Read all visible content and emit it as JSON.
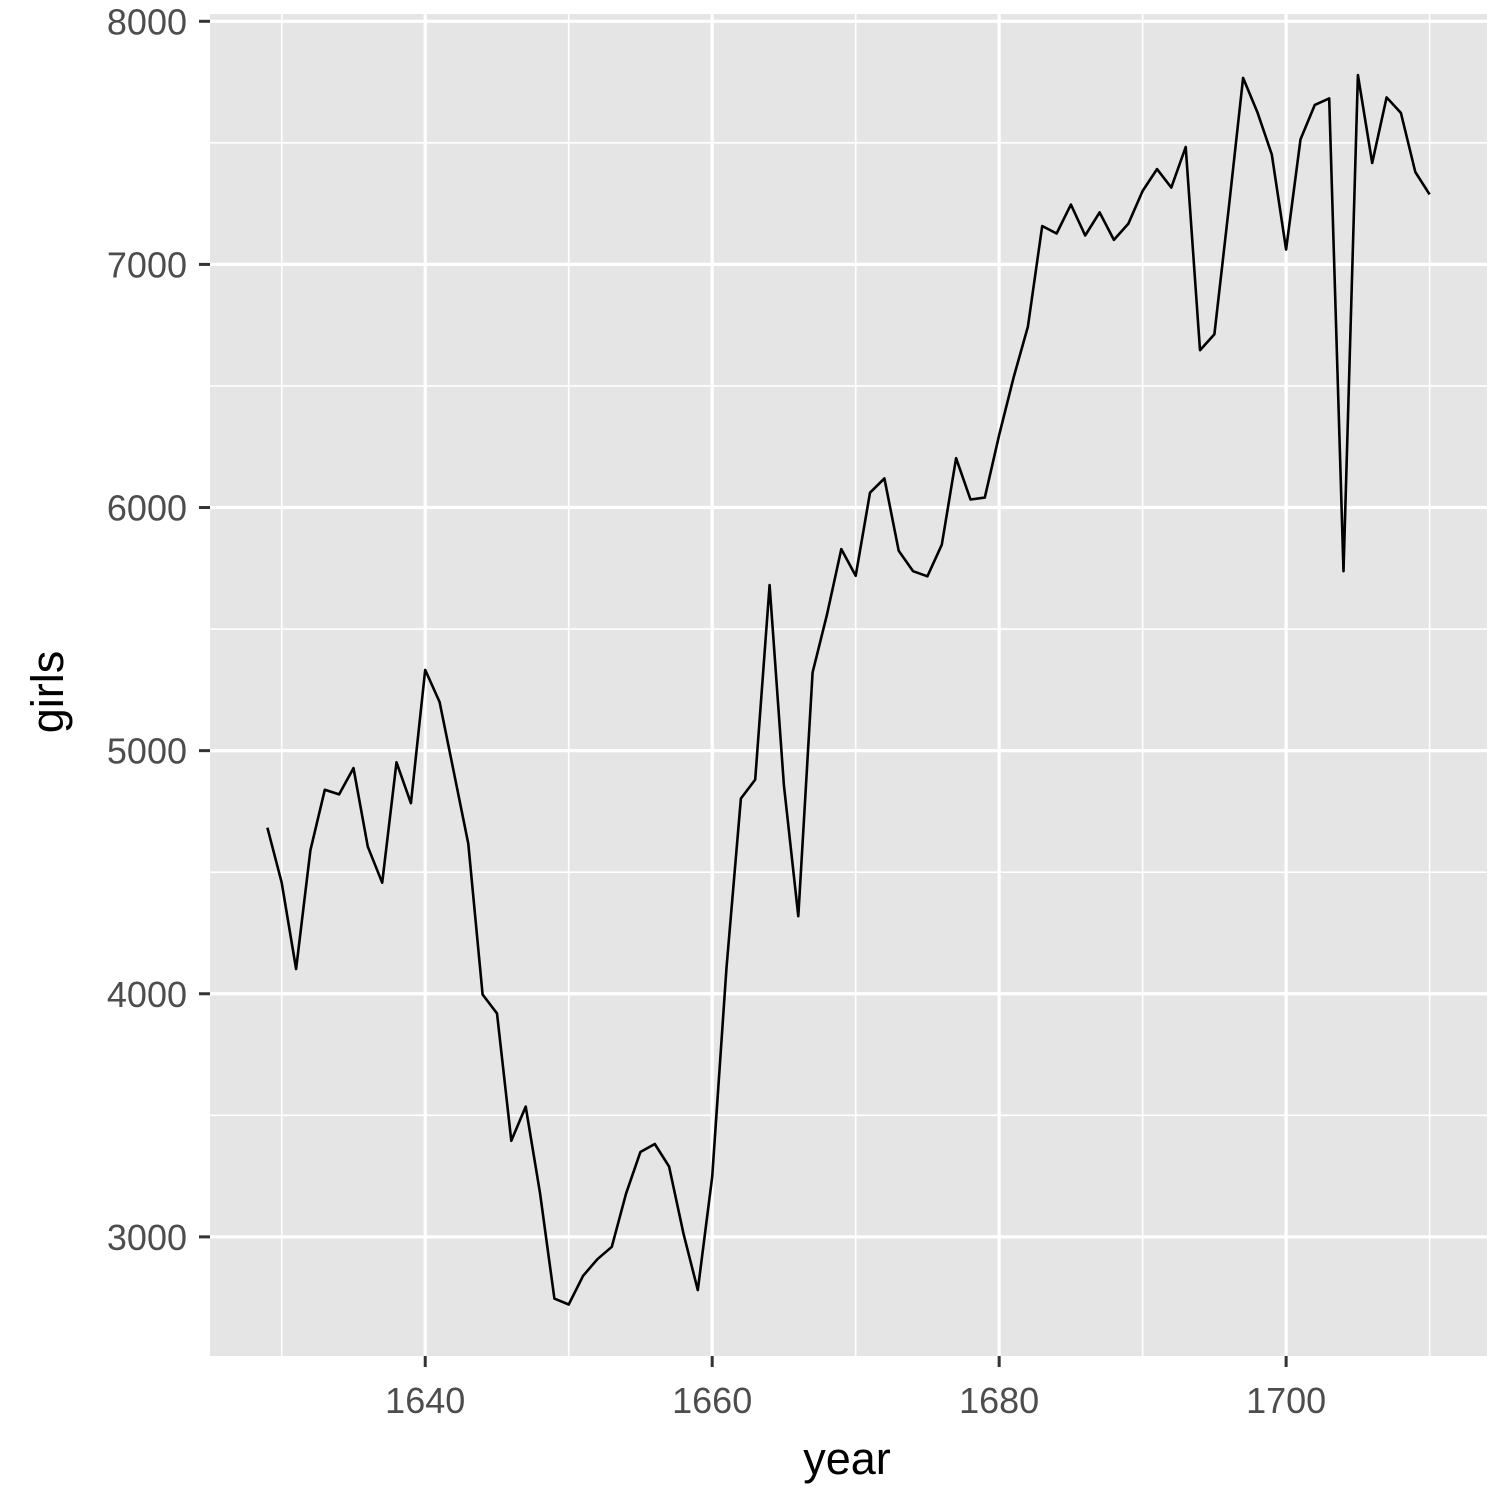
{
  "chart_data": {
    "type": "line",
    "title": "",
    "xlabel": "year",
    "ylabel": "girls",
    "xlim": [
      1625,
      1714
    ],
    "ylim": [
      2510,
      8030
    ],
    "x_major_ticks": [
      1640,
      1660,
      1680,
      1700
    ],
    "x_minor_ticks": [
      1630,
      1650,
      1670,
      1690,
      1710
    ],
    "y_major_ticks": [
      3000,
      4000,
      5000,
      6000,
      7000,
      8000
    ],
    "y_minor_ticks": [
      3500,
      4500,
      5500,
      6500,
      7500
    ],
    "grid": true,
    "legend": "none",
    "colors": {
      "panel": "#e5e5e5",
      "grid": "#ffffff",
      "line": "#000000",
      "tick_text": "#4d4d4d",
      "tick_mark": "#333333",
      "title_text": "#000000"
    },
    "x": [
      1629,
      1630,
      1631,
      1632,
      1633,
      1634,
      1635,
      1636,
      1637,
      1638,
      1639,
      1640,
      1641,
      1642,
      1643,
      1644,
      1645,
      1646,
      1647,
      1648,
      1649,
      1650,
      1651,
      1652,
      1653,
      1654,
      1655,
      1656,
      1657,
      1658,
      1659,
      1660,
      1661,
      1662,
      1663,
      1664,
      1665,
      1666,
      1667,
      1668,
      1669,
      1670,
      1671,
      1672,
      1673,
      1674,
      1675,
      1676,
      1677,
      1678,
      1679,
      1680,
      1681,
      1682,
      1683,
      1684,
      1685,
      1686,
      1687,
      1688,
      1689,
      1690,
      1691,
      1692,
      1693,
      1694,
      1695,
      1696,
      1697,
      1698,
      1699,
      1700,
      1701,
      1702,
      1703,
      1704,
      1705,
      1706,
      1707,
      1708,
      1709,
      1710
    ],
    "series": [
      {
        "values": [
          4683,
          4457,
          4102,
          4590,
          4839,
          4820,
          4928,
          4605,
          4457,
          4952,
          4784,
          5332,
          5200,
          4910,
          4617,
          3997,
          3919,
          3395,
          3536,
          3181,
          2746,
          2722,
          2840,
          2908,
          2959,
          3179,
          3349,
          3382,
          3289,
          3013,
          2781,
          3247,
          4107,
          4803,
          4881,
          5681,
          4858,
          4319,
          5322,
          5560,
          5829,
          5719,
          6061,
          6120,
          5822,
          5738,
          5717,
          5847,
          6203,
          6033,
          6041,
          6299,
          6533,
          6744,
          7158,
          7127,
          7246,
          7119,
          7214,
          7101,
          7167,
          7302,
          7392,
          7316,
          7483,
          6647,
          6713,
          7229,
          7767,
          7626,
          7452,
          7061,
          7514,
          7656,
          7683,
          5738,
          7779,
          7417,
          7687,
          7623,
          7380,
          7288
        ]
      }
    ]
  }
}
